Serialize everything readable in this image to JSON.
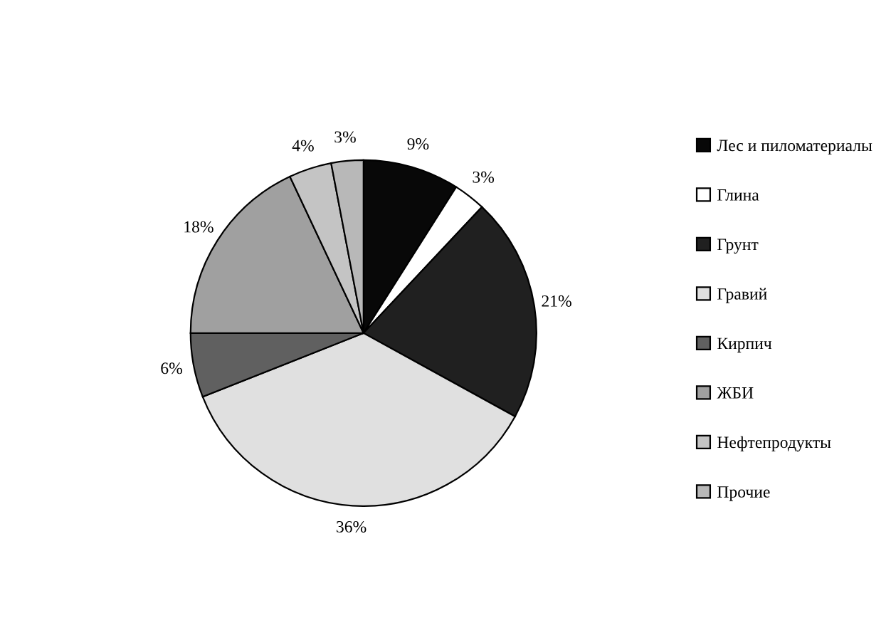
{
  "chart_data": {
    "type": "pie",
    "categories": [
      "Лес и пиломатериалы",
      "Глина",
      "Грунт",
      "Гравий",
      "Кирпич",
      "ЖБИ",
      "Нефтепродукты",
      "Прочие"
    ],
    "values": [
      9,
      3,
      21,
      36,
      6,
      18,
      4,
      3
    ],
    "value_labels": [
      "9%",
      "3%",
      "21%",
      "36%",
      "6%",
      "18%",
      "4%",
      "3%"
    ],
    "colors": [
      "#080808",
      "#ffffff",
      "#202020",
      "#e0e0e0",
      "#606060",
      "#a0a0a0",
      "#c4c4c4",
      "#b8b8b8"
    ],
    "legend": "right"
  }
}
